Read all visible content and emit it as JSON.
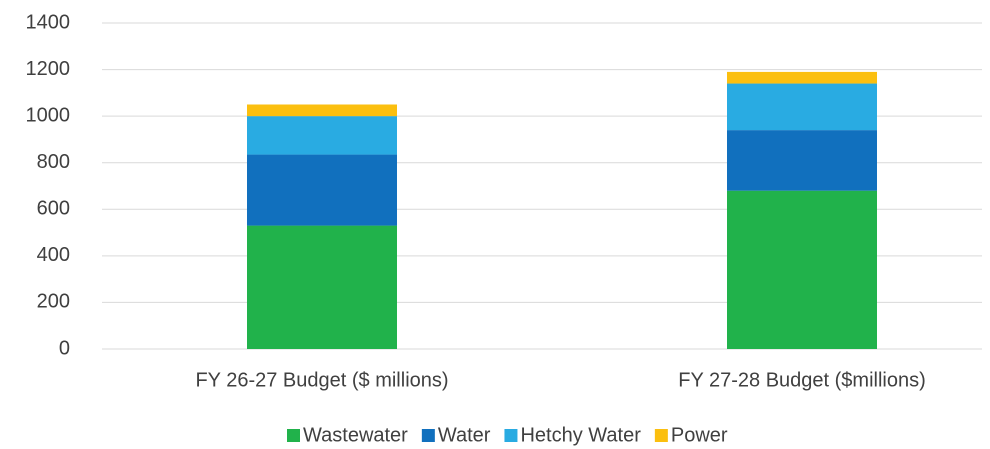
{
  "chart_data": {
    "type": "stacked_bar",
    "categories": [
      "FY 26-27 Budget ($ millions)",
      "FY 27-28 Budget ($millions)"
    ],
    "series": [
      {
        "name": "Wastewater",
        "color": "#21b24b",
        "values": [
          530,
          680
        ]
      },
      {
        "name": "Water",
        "color": "#1170be",
        "values": [
          305,
          260
        ]
      },
      {
        "name": "Hetchy Water",
        "color": "#29abe2",
        "values": [
          165,
          200
        ]
      },
      {
        "name": "Power",
        "color": "#fbbf0f",
        "values": [
          50,
          50
        ]
      }
    ],
    "ylim": [
      0,
      1400
    ],
    "yticks": [
      0,
      200,
      400,
      600,
      800,
      1000,
      1200,
      1400
    ],
    "grid": true,
    "legend": "bottom"
  }
}
